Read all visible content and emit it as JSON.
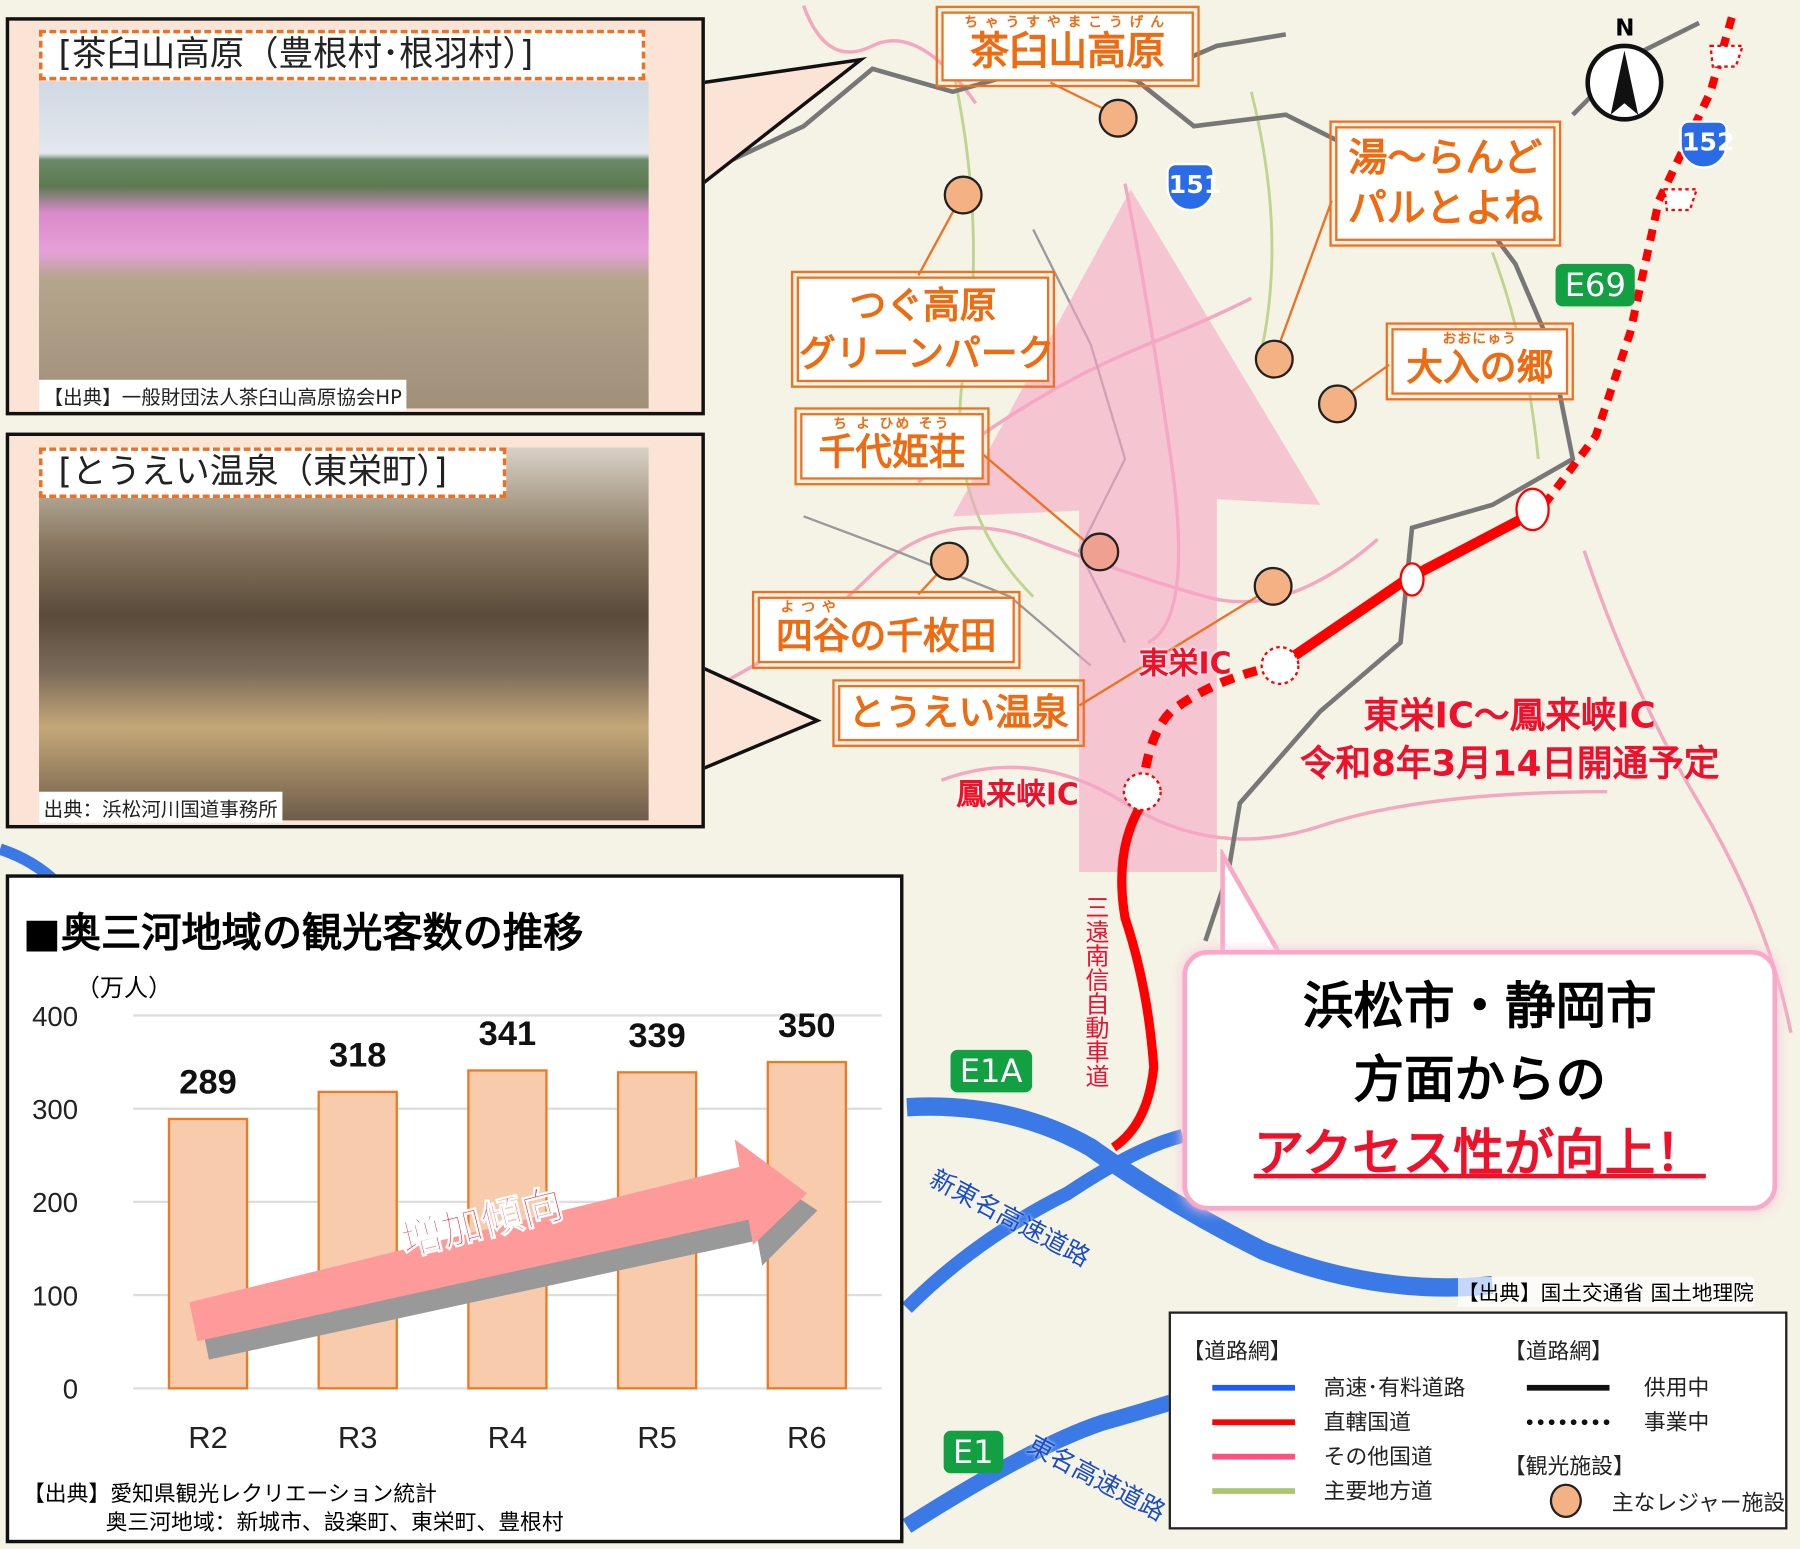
{
  "photo1": {
    "title": "[茶臼山高原（豊根村･根羽村）]",
    "caption": "【出典】一般財団法人茶臼山高原協会HP"
  },
  "photo2": {
    "title": "[とうえい温泉（東栄町）]",
    "caption": "出典：浜松河川国道事務所"
  },
  "map": {
    "labels": [
      {
        "ruby": "ちゃうすやまこうげん",
        "name": "茶臼山高原"
      },
      {
        "name": "湯～らんど\nパルとよね",
        "line1": "湯～らんど",
        "line2": "パルとよね"
      },
      {
        "line1": "つぐ高原",
        "line2": "グリーンパーク"
      },
      {
        "ruby": "おおにゅう",
        "name": "大入の郷"
      },
      {
        "ruby": "ち よ ひめ そう",
        "name": "千代姫荘"
      },
      {
        "ruby": "よつや",
        "name": "四谷の千枚田"
      },
      {
        "name": "とうえい温泉"
      }
    ],
    "interchanges": [
      "東栄IC",
      "鳳来峡IC"
    ],
    "opening": {
      "line1": "東栄IC～鳳来峡IC",
      "line2": "令和8年3月14日開通予定"
    },
    "expressway_name": "三遠南信自動車道",
    "route_shields": [
      "151",
      "152"
    ],
    "expressway_numbers": [
      "E69",
      "E1A",
      "E1"
    ],
    "road_names": [
      "新東名高速道路",
      "東名高速道路"
    ],
    "north": "N",
    "source": "【出典】国土交通省 国土地理院",
    "callout": {
      "line1": "浜松市・静岡市",
      "line2": "方面からの",
      "line3": "アクセス性が向上！"
    }
  },
  "legend": {
    "road_title": "【道路網】",
    "roads": [
      {
        "label": "高速･有料道路",
        "color": "#1a5cff"
      },
      {
        "label": "直轄国道",
        "color": "#ff0000"
      },
      {
        "label": "その他国道",
        "color": "#ff5080"
      },
      {
        "label": "主要地方道",
        "color": "#a8c870"
      }
    ],
    "status_title": "【道路網】",
    "status": [
      {
        "label": "供用中",
        "style": "solid"
      },
      {
        "label": "事業中",
        "style": "dotted"
      }
    ],
    "facility_title": "【観光施設】",
    "facility": {
      "label": "主なレジャー施設",
      "color": "#f4b183"
    }
  },
  "chart_data": {
    "type": "bar",
    "title": "■奥三河地域の観光客数の推移",
    "ylabel": "（万人）",
    "categories": [
      "R2",
      "R3",
      "R4",
      "R5",
      "R6"
    ],
    "values": [
      289,
      318,
      341,
      339,
      350
    ],
    "ylim": [
      0,
      400
    ],
    "yticks": [
      "0",
      "100",
      "200",
      "300",
      "400"
    ],
    "grid": true,
    "bar_color": "#f8cbad",
    "bar_edge": "#f07820",
    "annotation": "増加傾向",
    "source_line1": "【出典】愛知県観光レクリエーション統計",
    "source_line2": "奥三河地域：新城市、設楽町、東栄町、豊根村"
  }
}
